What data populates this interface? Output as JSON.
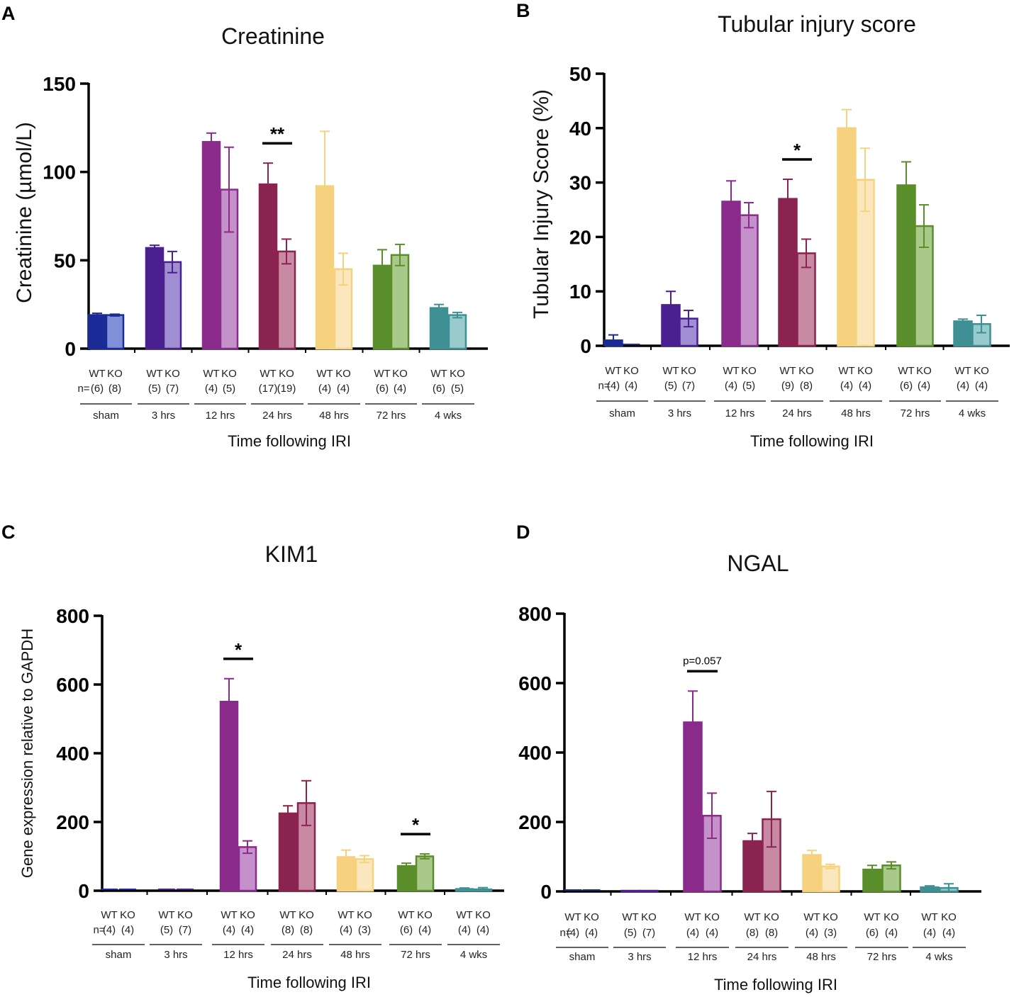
{
  "figure": {
    "panels": [
      {
        "letter": "A"
      },
      {
        "letter": "B"
      },
      {
        "letter": "C"
      },
      {
        "letter": "D"
      }
    ]
  },
  "chart_data": [
    {
      "panel": "A",
      "type": "bar",
      "title": "Creatinine",
      "ylabel": "Creatinine (µmol/L)",
      "xlabel": "Time following IRI",
      "ylim": [
        0,
        150
      ],
      "yticks": [
        0,
        50,
        100,
        150
      ],
      "n_prefix": "n=",
      "groups": [
        {
          "label": "sham",
          "color": "#1a2a96",
          "light": "#7f8fd8",
          "wt": {
            "label": "WT",
            "n": "(6)",
            "value": 19,
            "err": 1
          },
          "ko": {
            "label": "KO",
            "n": "(8)",
            "value": 19,
            "err": 0.5
          }
        },
        {
          "label": "3 hrs",
          "color": "#4a1f8f",
          "light": "#a08ed2",
          "wt": {
            "label": "WT",
            "n": "(5)",
            "value": 57,
            "err": 1.5
          },
          "ko": {
            "label": "KO",
            "n": "(7)",
            "value": 49,
            "err": 6
          }
        },
        {
          "label": "12 hrs",
          "color": "#8a2b8c",
          "light": "#c591cb",
          "wt": {
            "label": "WT",
            "n": "(4)",
            "value": 117,
            "err": 5
          },
          "ko": {
            "label": "KO",
            "n": "(5)",
            "value": 90,
            "err": 24
          }
        },
        {
          "label": "24 hrs",
          "color": "#8b2350",
          "light": "#c88aa2",
          "wt": {
            "label": "WT",
            "n": "(17)",
            "value": 93,
            "err": 12
          },
          "ko": {
            "label": "KO",
            "n": "(19)",
            "value": 55,
            "err": 7
          },
          "sig": "**"
        },
        {
          "label": "48 hrs",
          "color": "#f6d27e",
          "light": "#fbe7bd",
          "wt": {
            "label": "WT",
            "n": "(4)",
            "value": 92,
            "err": 31
          },
          "ko": {
            "label": "KO",
            "n": "(4)",
            "value": 45,
            "err": 9
          }
        },
        {
          "label": "72 hrs",
          "color": "#5a8e2b",
          "light": "#a8c98a",
          "wt": {
            "label": "WT",
            "n": "(6)",
            "value": 47,
            "err": 9
          },
          "ko": {
            "label": "KO",
            "n": "(4)",
            "value": 53,
            "err": 6
          }
        },
        {
          "label": "4 wks",
          "color": "#3f9094",
          "light": "#99cbcd",
          "wt": {
            "label": "WT",
            "n": "(6)",
            "value": 23,
            "err": 2
          },
          "ko": {
            "label": "KO",
            "n": "(5)",
            "value": 19,
            "err": 1.5
          }
        }
      ]
    },
    {
      "panel": "B",
      "type": "bar",
      "title": "Tubular injury score",
      "ylabel": "Tubular Injury Score (%)",
      "xlabel": "Time following IRI",
      "ylim": [
        0,
        50
      ],
      "yticks": [
        0,
        10,
        20,
        30,
        40,
        50
      ],
      "n_prefix": "n=",
      "groups": [
        {
          "label": "sham",
          "color": "#1a2a96",
          "light": "#7f8fd8",
          "wt": {
            "label": "WT",
            "n": "(4)",
            "value": 1,
            "err": 1
          },
          "ko": {
            "label": "KO",
            "n": "(4)",
            "value": 0,
            "err": 0
          }
        },
        {
          "label": "3 hrs",
          "color": "#4a1f8f",
          "light": "#a08ed2",
          "wt": {
            "label": "WT",
            "n": "(5)",
            "value": 7.5,
            "err": 2.5
          },
          "ko": {
            "label": "KO",
            "n": "(7)",
            "value": 5,
            "err": 1.5
          }
        },
        {
          "label": "12 hrs",
          "color": "#8a2b8c",
          "light": "#c591cb",
          "wt": {
            "label": "WT",
            "n": "(4)",
            "value": 26.5,
            "err": 3.8
          },
          "ko": {
            "label": "KO",
            "n": "(5)",
            "value": 24,
            "err": 2.3
          }
        },
        {
          "label": "24 hrs",
          "color": "#8b2350",
          "light": "#c88aa2",
          "wt": {
            "label": "WT",
            "n": "(9)",
            "value": 27,
            "err": 3.6
          },
          "ko": {
            "label": "KO",
            "n": "(8)",
            "value": 17,
            "err": 2.6
          },
          "sig": "*"
        },
        {
          "label": "48 hrs",
          "color": "#f6d27e",
          "light": "#fbe7bd",
          "wt": {
            "label": "WT",
            "n": "(4)",
            "value": 40,
            "err": 3.4
          },
          "ko": {
            "label": "KO",
            "n": "(4)",
            "value": 30.5,
            "err": 5.8
          }
        },
        {
          "label": "72 hrs",
          "color": "#5a8e2b",
          "light": "#a8c98a",
          "wt": {
            "label": "WT",
            "n": "(6)",
            "value": 29.5,
            "err": 4.3
          },
          "ko": {
            "label": "KO",
            "n": "(4)",
            "value": 22,
            "err": 3.9
          }
        },
        {
          "label": "4 wks",
          "color": "#3f9094",
          "light": "#99cbcd",
          "wt": {
            "label": "WT",
            "n": "(4)",
            "value": 4.5,
            "err": 0.4
          },
          "ko": {
            "label": "KO",
            "n": "(4)",
            "value": 4,
            "err": 1.6
          }
        }
      ]
    },
    {
      "panel": "C",
      "type": "bar",
      "title": "KIM1",
      "ylabel": "Gene expression relative to GAPDH",
      "xlabel": "Time following IRI",
      "ylim": [
        0,
        800
      ],
      "yticks": [
        0,
        200,
        400,
        600,
        800
      ],
      "n_prefix": "n=",
      "groups": [
        {
          "label": "sham",
          "color": "#1a2a96",
          "light": "#7f8fd8",
          "wt": {
            "label": "WT",
            "n": "(4)",
            "value": 0,
            "err": 0
          },
          "ko": {
            "label": "KO",
            "n": "(4)",
            "value": 0,
            "err": 0
          }
        },
        {
          "label": "3 hrs",
          "color": "#4a1f8f",
          "light": "#a08ed2",
          "wt": {
            "label": "WT",
            "n": "(5)",
            "value": 0,
            "err": 0
          },
          "ko": {
            "label": "KO",
            "n": "(7)",
            "value": 0,
            "err": 0
          }
        },
        {
          "label": "12 hrs",
          "color": "#8a2b8c",
          "light": "#c591cb",
          "wt": {
            "label": "WT",
            "n": "(4)",
            "value": 550,
            "err": 67
          },
          "ko": {
            "label": "KO",
            "n": "(4)",
            "value": 127,
            "err": 18
          },
          "sig": "*"
        },
        {
          "label": "24 hrs",
          "color": "#8b2350",
          "light": "#c88aa2",
          "wt": {
            "label": "WT",
            "n": "(8)",
            "value": 225,
            "err": 22
          },
          "ko": {
            "label": "KO",
            "n": "(8)",
            "value": 255,
            "err": 65
          }
        },
        {
          "label": "48 hrs",
          "color": "#f6d27e",
          "light": "#fbe7bd",
          "wt": {
            "label": "WT",
            "n": "(4)",
            "value": 98,
            "err": 20
          },
          "ko": {
            "label": "KO",
            "n": "(3)",
            "value": 92,
            "err": 10
          }
        },
        {
          "label": "72 hrs",
          "color": "#5a8e2b",
          "light": "#a8c98a",
          "wt": {
            "label": "WT",
            "n": "(6)",
            "value": 72,
            "err": 8
          },
          "ko": {
            "label": "KO",
            "n": "(4)",
            "value": 100,
            "err": 7
          },
          "sig": "*"
        },
        {
          "label": "4 wks",
          "color": "#3f9094",
          "light": "#99cbcd",
          "wt": {
            "label": "WT",
            "n": "(4)",
            "value": 5,
            "err": 3
          },
          "ko": {
            "label": "KO",
            "n": "(4)",
            "value": 4,
            "err": 5
          }
        }
      ]
    },
    {
      "panel": "D",
      "type": "bar",
      "title": "NGAL",
      "ylabel": "",
      "xlabel": "Time following IRI",
      "ylim": [
        0,
        800
      ],
      "yticks": [
        0,
        200,
        400,
        600,
        800
      ],
      "n_prefix": "n=",
      "groups": [
        {
          "label": "sham",
          "color": "#1a2a96",
          "light": "#7f8fd8",
          "wt": {
            "label": "WT",
            "n": "(4)",
            "value": 1,
            "err": 0
          },
          "ko": {
            "label": "KO",
            "n": "(4)",
            "value": 0,
            "err": 0
          }
        },
        {
          "label": "3 hrs",
          "color": "#4a1f8f",
          "light": "#a08ed2",
          "wt": {
            "label": "WT",
            "n": "(5)",
            "value": 2,
            "err": 0
          },
          "ko": {
            "label": "KO",
            "n": "(7)",
            "value": 2,
            "err": 0
          }
        },
        {
          "label": "12 hrs",
          "color": "#8a2b8c",
          "light": "#c591cb",
          "wt": {
            "label": "WT",
            "n": "(4)",
            "value": 487,
            "err": 90
          },
          "ko": {
            "label": "KO",
            "n": "(4)",
            "value": 218,
            "err": 65
          },
          "sig": "p=0.057"
        },
        {
          "label": "24 hrs",
          "color": "#8b2350",
          "light": "#c88aa2",
          "wt": {
            "label": "WT",
            "n": "(8)",
            "value": 145,
            "err": 22
          },
          "ko": {
            "label": "KO",
            "n": "(8)",
            "value": 208,
            "err": 80
          }
        },
        {
          "label": "48 hrs",
          "color": "#f6d27e",
          "light": "#fbe7bd",
          "wt": {
            "label": "WT",
            "n": "(4)",
            "value": 105,
            "err": 13
          },
          "ko": {
            "label": "KO",
            "n": "(3)",
            "value": 72,
            "err": 6
          }
        },
        {
          "label": "72 hrs",
          "color": "#5a8e2b",
          "light": "#a8c98a",
          "wt": {
            "label": "WT",
            "n": "(6)",
            "value": 63,
            "err": 12
          },
          "ko": {
            "label": "KO",
            "n": "(4)",
            "value": 75,
            "err": 10
          }
        },
        {
          "label": "4 wks",
          "color": "#3f9094",
          "light": "#99cbcd",
          "wt": {
            "label": "WT",
            "n": "(4)",
            "value": 12,
            "err": 4
          },
          "ko": {
            "label": "KO",
            "n": "(4)",
            "value": 10,
            "err": 12
          }
        }
      ]
    }
  ]
}
